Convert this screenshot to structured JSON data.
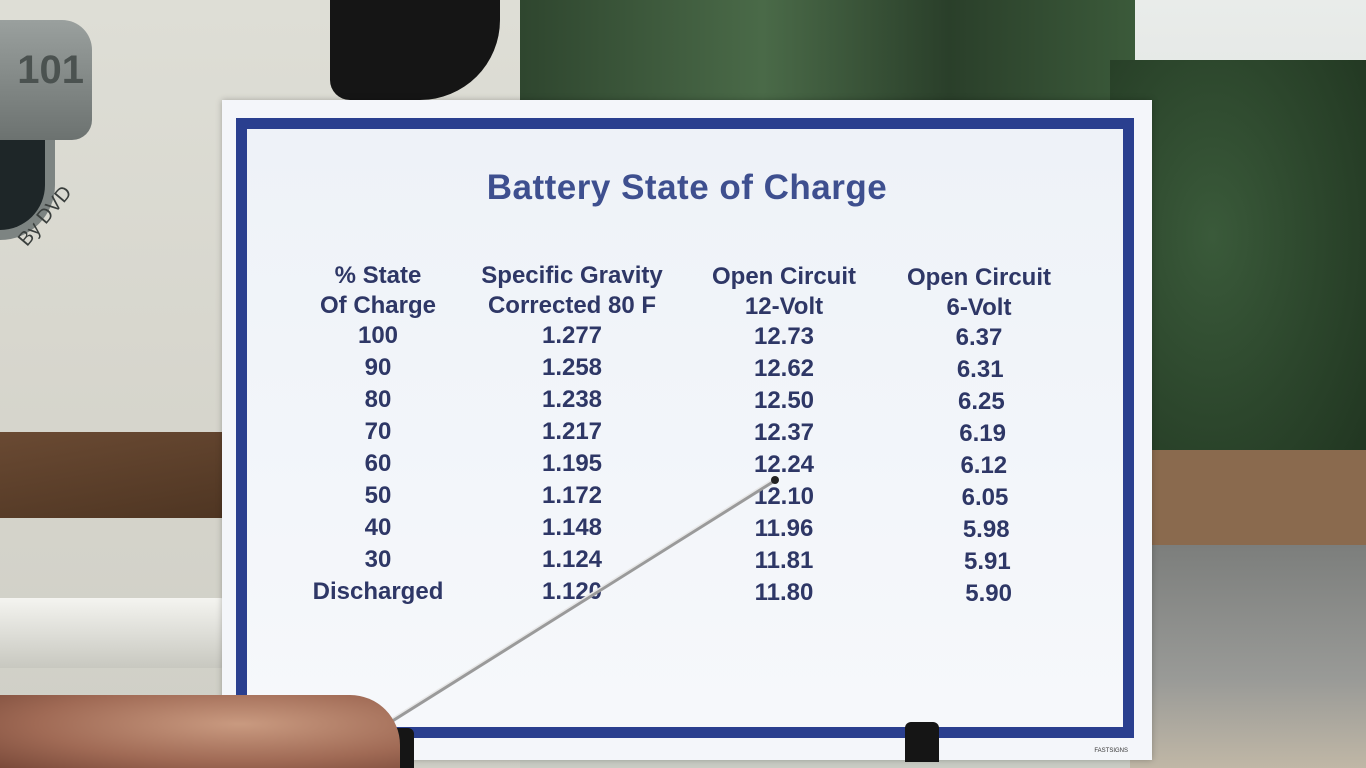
{
  "logo": {
    "number": "101",
    "tagline": "By DVD"
  },
  "sign": {
    "title": "Battery State of Charge",
    "columns": [
      {
        "line1": "% State",
        "line2": "Of Charge"
      },
      {
        "line1": "Specific Gravity",
        "line2": "Corrected 80 F"
      },
      {
        "line1": "Open Circuit",
        "line2": "12-Volt"
      },
      {
        "line1": "Open Circuit",
        "line2": "6-Volt"
      }
    ],
    "rows": [
      [
        "100",
        "1.277",
        "12.73",
        "6.37"
      ],
      [
        "90",
        "1.258",
        "12.62",
        "6.31"
      ],
      [
        "80",
        "1.238",
        "12.50",
        "6.25"
      ],
      [
        "70",
        "1.217",
        "12.37",
        "6.19"
      ],
      [
        "60",
        "1.195",
        "12.24",
        "6.12"
      ],
      [
        "50",
        "1.172",
        "12.10",
        "6.05"
      ],
      [
        "40",
        "1.148",
        "11.96",
        "5.98"
      ],
      [
        "30",
        "1.124",
        "11.81",
        "5.91"
      ],
      [
        "Discharged",
        "1.120",
        "11.80",
        "5.90"
      ]
    ],
    "fineprint": "FASTSIGNS"
  },
  "colors": {
    "sign_border": "#2a3f8f",
    "title": "#3e4f8f",
    "text": "#2e3766"
  }
}
